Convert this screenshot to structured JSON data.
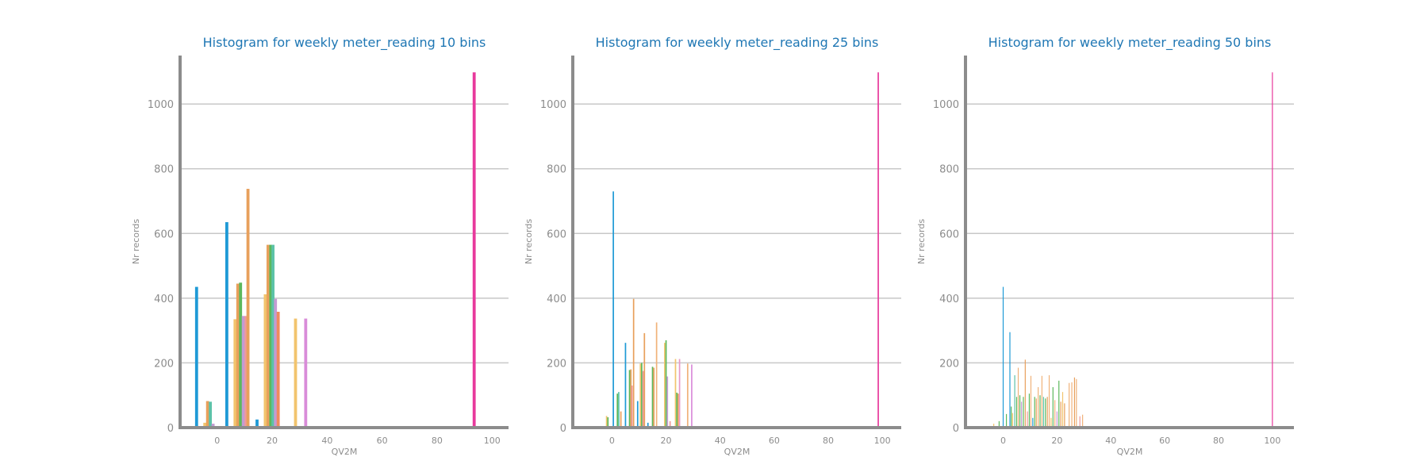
{
  "chart_data": [
    {
      "type": "bar",
      "title": "Histogram for weekly meter_reading 10 bins",
      "xlabel": "QV2M",
      "ylabel": "Nr records",
      "xlim": [
        -13.5,
        106
      ],
      "ylim": [
        0,
        1150
      ],
      "xticks": [
        0,
        20,
        40,
        60,
        80,
        100
      ],
      "yticks": [
        0,
        200,
        400,
        600,
        800,
        1000
      ],
      "grid": "horizontal",
      "bar_width": 1.1,
      "bars": [
        {
          "x": -7.5,
          "y": 435,
          "color": "#1f9ad6"
        },
        {
          "x": -4.5,
          "y": 15,
          "color": "#f2c46d"
        },
        {
          "x": -3.5,
          "y": 82,
          "color": "#e8a05c"
        },
        {
          "x": -2.5,
          "y": 80,
          "color": "#5cc2a8"
        },
        {
          "x": -1.5,
          "y": 12,
          "color": "#c39bd3"
        },
        {
          "x": 3.5,
          "y": 635,
          "color": "#1f9ad6"
        },
        {
          "x": 6.5,
          "y": 335,
          "color": "#f2c46d"
        },
        {
          "x": 7.5,
          "y": 445,
          "color": "#e8a05c"
        },
        {
          "x": 8.5,
          "y": 448,
          "color": "#5cb85c"
        },
        {
          "x": 9.5,
          "y": 345,
          "color": "#c39bd3"
        },
        {
          "x": 10.5,
          "y": 345,
          "color": "#ef9a9a"
        },
        {
          "x": 11.2,
          "y": 738,
          "color": "#e8a05c"
        },
        {
          "x": 14.5,
          "y": 25,
          "color": "#1f9ad6"
        },
        {
          "x": 17.5,
          "y": 412,
          "color": "#f2c46d"
        },
        {
          "x": 18.5,
          "y": 565,
          "color": "#e8a05c"
        },
        {
          "x": 19.5,
          "y": 565,
          "color": "#5cb85c"
        },
        {
          "x": 20.3,
          "y": 565,
          "color": "#5cc2a8"
        },
        {
          "x": 21.2,
          "y": 398,
          "color": "#c39bd3"
        },
        {
          "x": 22.2,
          "y": 358,
          "color": "#f08a5d"
        },
        {
          "x": 28.5,
          "y": 337,
          "color": "#f2c46d"
        },
        {
          "x": 32.2,
          "y": 337,
          "color": "#d98cd9"
        },
        {
          "x": 93.5,
          "y": 1098,
          "color": "#e8399c"
        },
        {
          "x": 100,
          "y": 3,
          "color": "#1f9ad6"
        }
      ]
    },
    {
      "type": "bar",
      "title": "Histogram for weekly meter_reading 25 bins",
      "xlabel": "QV2M",
      "ylabel": "Nr records",
      "xlim": [
        -14.5,
        107
      ],
      "ylim": [
        0,
        1150
      ],
      "xticks": [
        0,
        20,
        40,
        60,
        80,
        100
      ],
      "yticks": [
        0,
        200,
        400,
        600,
        800,
        1000
      ],
      "grid": "horizontal",
      "bar_width": 0.5,
      "bars": [
        {
          "x": -2,
          "y": 36,
          "color": "#f2c46d"
        },
        {
          "x": -1.5,
          "y": 32,
          "color": "#5cb85c"
        },
        {
          "x": 0.5,
          "y": 730,
          "color": "#1f9ad6"
        },
        {
          "x": 2,
          "y": 105,
          "color": "#5cb85c"
        },
        {
          "x": 2.5,
          "y": 110,
          "color": "#5cc2a8"
        },
        {
          "x": 3.3,
          "y": 50,
          "color": "#e8a05c"
        },
        {
          "x": 5,
          "y": 262,
          "color": "#1f9ad6"
        },
        {
          "x": 6.5,
          "y": 178,
          "color": "#5cb85c"
        },
        {
          "x": 7,
          "y": 180,
          "color": "#e8a05c"
        },
        {
          "x": 7.4,
          "y": 130,
          "color": "#ef9a9a"
        },
        {
          "x": 8,
          "y": 398,
          "color": "#e8a05c"
        },
        {
          "x": 9.5,
          "y": 82,
          "color": "#1f9ad6"
        },
        {
          "x": 10.5,
          "y": 198,
          "color": "#f2c46d"
        },
        {
          "x": 11,
          "y": 200,
          "color": "#5cb85c"
        },
        {
          "x": 11.5,
          "y": 175,
          "color": "#ef9a9a"
        },
        {
          "x": 12,
          "y": 292,
          "color": "#e8a05c"
        },
        {
          "x": 13.3,
          "y": 15,
          "color": "#1f9ad6"
        },
        {
          "x": 15,
          "y": 188,
          "color": "#5cb85c"
        },
        {
          "x": 15.5,
          "y": 185,
          "color": "#e8a05c"
        },
        {
          "x": 16.5,
          "y": 325,
          "color": "#f0b27a"
        },
        {
          "x": 19.5,
          "y": 262,
          "color": "#f2c46d"
        },
        {
          "x": 20,
          "y": 270,
          "color": "#5cb85c"
        },
        {
          "x": 20.5,
          "y": 158,
          "color": "#c39bd3"
        },
        {
          "x": 21.5,
          "y": 20,
          "color": "#ef9a9a"
        },
        {
          "x": 23.5,
          "y": 212,
          "color": "#f2c46d"
        },
        {
          "x": 24,
          "y": 108,
          "color": "#5cb85c"
        },
        {
          "x": 24.5,
          "y": 105,
          "color": "#e8a05c"
        },
        {
          "x": 25,
          "y": 212,
          "color": "#e89ac7"
        },
        {
          "x": 28,
          "y": 198,
          "color": "#f0b27a"
        },
        {
          "x": 29.5,
          "y": 195,
          "color": "#d98cd9"
        },
        {
          "x": 98.5,
          "y": 1098,
          "color": "#e8399c"
        }
      ]
    },
    {
      "type": "bar",
      "title": "Histogram for weekly meter_reading 50 bins",
      "xlabel": "QV2M",
      "ylabel": "Nr records",
      "xlim": [
        -14,
        108
      ],
      "ylim": [
        0,
        1150
      ],
      "xticks": [
        0,
        20,
        40,
        60,
        80,
        100
      ],
      "yticks": [
        0,
        200,
        400,
        600,
        800,
        1000
      ],
      "grid": "horizontal",
      "bar_width": 0.3,
      "bars": [
        {
          "x": -3.5,
          "y": 12,
          "color": "#f2c46d"
        },
        {
          "x": -1.5,
          "y": 20,
          "color": "#5cb85c"
        },
        {
          "x": 0,
          "y": 435,
          "color": "#1f9ad6"
        },
        {
          "x": 1.2,
          "y": 42,
          "color": "#5cb85c"
        },
        {
          "x": 2.5,
          "y": 295,
          "color": "#1f9ad6"
        },
        {
          "x": 3,
          "y": 65,
          "color": "#5cb85c"
        },
        {
          "x": 3.5,
          "y": 45,
          "color": "#f2c46d"
        },
        {
          "x": 4.3,
          "y": 162,
          "color": "#5cc2a8"
        },
        {
          "x": 5,
          "y": 95,
          "color": "#5cb85c"
        },
        {
          "x": 5.6,
          "y": 185,
          "color": "#f0b27a"
        },
        {
          "x": 6.2,
          "y": 100,
          "color": "#5cb85c"
        },
        {
          "x": 6.8,
          "y": 80,
          "color": "#c39bd3"
        },
        {
          "x": 7.5,
          "y": 95,
          "color": "#5cb85c"
        },
        {
          "x": 8.2,
          "y": 210,
          "color": "#e8a05c"
        },
        {
          "x": 9,
          "y": 50,
          "color": "#ef9a9a"
        },
        {
          "x": 9.7,
          "y": 105,
          "color": "#5cb85c"
        },
        {
          "x": 10.3,
          "y": 160,
          "color": "#f0b27a"
        },
        {
          "x": 11,
          "y": 30,
          "color": "#1f9ad6"
        },
        {
          "x": 11.7,
          "y": 95,
          "color": "#5cb85c"
        },
        {
          "x": 12.3,
          "y": 90,
          "color": "#e8a05c"
        },
        {
          "x": 13,
          "y": 125,
          "color": "#f0b27a"
        },
        {
          "x": 13.7,
          "y": 100,
          "color": "#5cb85c"
        },
        {
          "x": 14.4,
          "y": 160,
          "color": "#f0b27a"
        },
        {
          "x": 15,
          "y": 95,
          "color": "#5cc2a8"
        },
        {
          "x": 15.7,
          "y": 90,
          "color": "#5cb85c"
        },
        {
          "x": 16.4,
          "y": 95,
          "color": "#e8a05c"
        },
        {
          "x": 17.1,
          "y": 162,
          "color": "#f0b27a"
        },
        {
          "x": 17.8,
          "y": 30,
          "color": "#f2c46d"
        },
        {
          "x": 18.5,
          "y": 125,
          "color": "#5cb85c"
        },
        {
          "x": 19.2,
          "y": 85,
          "color": "#f0b27a"
        },
        {
          "x": 20,
          "y": 50,
          "color": "#c39bd3"
        },
        {
          "x": 20.7,
          "y": 145,
          "color": "#5cb85c"
        },
        {
          "x": 21.4,
          "y": 80,
          "color": "#e8a05c"
        },
        {
          "x": 22.1,
          "y": 110,
          "color": "#f2c46d"
        },
        {
          "x": 22.8,
          "y": 75,
          "color": "#e8a05c"
        },
        {
          "x": 24.5,
          "y": 138,
          "color": "#f0b27a"
        },
        {
          "x": 25.5,
          "y": 140,
          "color": "#f0b27a"
        },
        {
          "x": 26.5,
          "y": 155,
          "color": "#e8a05c"
        },
        {
          "x": 27.2,
          "y": 150,
          "color": "#f0b27a"
        },
        {
          "x": 28.5,
          "y": 35,
          "color": "#ef9a9a"
        },
        {
          "x": 29.5,
          "y": 40,
          "color": "#f0b27a"
        },
        {
          "x": 100,
          "y": 1098,
          "color": "#e8399c"
        }
      ]
    }
  ]
}
